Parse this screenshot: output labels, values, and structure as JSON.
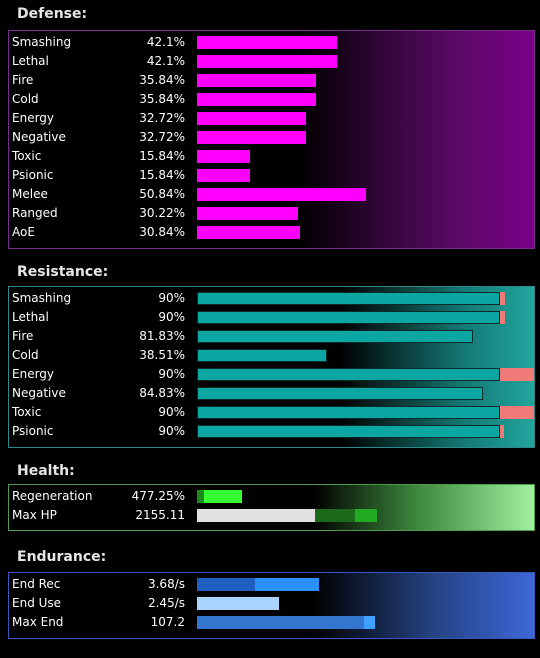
{
  "defense": {
    "title": "Defense:",
    "rows": [
      {
        "label": "Smashing",
        "value": "42.1%",
        "pct": 42.1
      },
      {
        "label": "Lethal",
        "value": "42.1%",
        "pct": 42.1
      },
      {
        "label": "Fire",
        "value": "35.84%",
        "pct": 35.84
      },
      {
        "label": "Cold",
        "value": "35.84%",
        "pct": 35.84
      },
      {
        "label": "Energy",
        "value": "32.72%",
        "pct": 32.72
      },
      {
        "label": "Negative",
        "value": "32.72%",
        "pct": 32.72
      },
      {
        "label": "Toxic",
        "value": "15.84%",
        "pct": 15.84
      },
      {
        "label": "Psionic",
        "value": "15.84%",
        "pct": 15.84
      },
      {
        "label": "Melee",
        "value": "50.84%",
        "pct": 50.84
      },
      {
        "label": "Ranged",
        "value": "30.22%",
        "pct": 30.22
      },
      {
        "label": "AoE",
        "value": "30.84%",
        "pct": 30.84
      }
    ]
  },
  "resistance": {
    "title": "Resistance:",
    "rows": [
      {
        "label": "Smashing",
        "value": "90%",
        "pct": 90,
        "uncapped_pct": 91.5
      },
      {
        "label": "Lethal",
        "value": "90%",
        "pct": 90,
        "uncapped_pct": 91.5
      },
      {
        "label": "Fire",
        "value": "81.83%",
        "pct": 81.83
      },
      {
        "label": "Cold",
        "value": "38.51%",
        "pct": 38.51
      },
      {
        "label": "Energy",
        "value": "90%",
        "pct": 90,
        "uncapped_pct": 100
      },
      {
        "label": "Negative",
        "value": "84.83%",
        "pct": 84.83
      },
      {
        "label": "Toxic",
        "value": "90%",
        "pct": 90,
        "uncapped_pct": 100
      },
      {
        "label": "Psionic",
        "value": "90%",
        "pct": 90,
        "uncapped_pct": 91
      }
    ]
  },
  "health": {
    "title": "Health:",
    "regeneration": {
      "label": "Regeneration",
      "value": "477.25%",
      "seg1_frac": 0.02,
      "seg2_frac": 0.113
    },
    "max_hp": {
      "label": "Max HP",
      "value": "2155.11",
      "base_frac": 0.35,
      "bonus1_frac": 0.119,
      "bonus2_frac": 0.066
    }
  },
  "endurance": {
    "title": "Endurance:",
    "end_rec": {
      "label": "End Rec",
      "value": "3.68/s",
      "base_frac": 0.173,
      "bonus_frac": 0.189
    },
    "end_use": {
      "label": "End Use",
      "value": "2.45/s",
      "frac": 0.242
    },
    "max_end": {
      "label": "Max End",
      "value": "107.2",
      "base_frac": 0.495,
      "bonus_frac": 0.033
    }
  },
  "colors": {
    "defense_bar": "#ff00ff",
    "resistance_bar": "#0aa6a2",
    "resistance_over": "#f07a78",
    "regen_dark": "#1a8a1a",
    "regen_light": "#33ff33",
    "hp_base": "#e0e0e0",
    "hp_bonus_dark": "#1a6a1a",
    "hp_bonus_light": "#22aa22",
    "end_rec_dark": "#1f5fbf",
    "end_rec_light": "#2a90ff",
    "end_use": "#a8d4ff",
    "max_end_dark": "#3276cf",
    "max_end_light": "#3fa0ff"
  }
}
